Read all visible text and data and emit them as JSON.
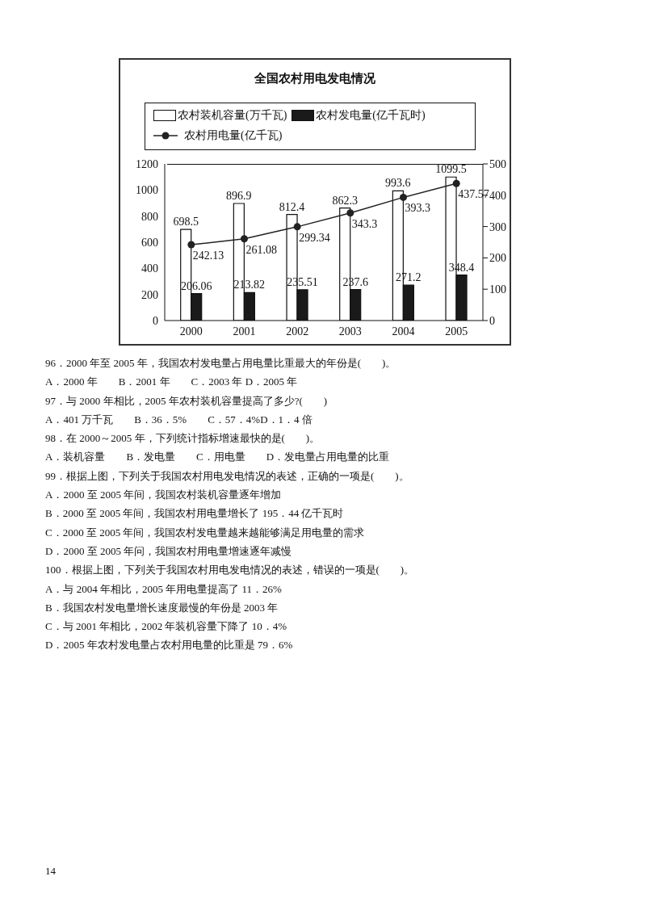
{
  "chart_data": {
    "type": "bar",
    "title": "全国农村用电发电情况",
    "categories": [
      "2000",
      "2001",
      "2002",
      "2003",
      "2004",
      "2005"
    ],
    "series": [
      {
        "name": "农村装机容量(万千瓦)",
        "color": "#ffffff",
        "values": [
          698.5,
          896.9,
          812.4,
          862.3,
          993.6,
          1099.5
        ]
      },
      {
        "name": "农村发电量(亿千瓦时)",
        "color": "#1a1a1a",
        "values": [
          206.06,
          213.82,
          235.51,
          237.6,
          271.2,
          348.4
        ]
      },
      {
        "name": "农村用电量(亿千瓦)",
        "type": "line",
        "axis": "y2",
        "color": "#222222",
        "values": [
          242.13,
          261.08,
          299.34,
          343.3,
          393.3,
          437.57
        ]
      }
    ],
    "ylim": [
      0,
      1200
    ],
    "yticks": [
      0,
      200,
      400,
      600,
      800,
      1000,
      1200
    ],
    "y2lim": [
      0,
      500
    ],
    "y2ticks": [
      0,
      100,
      200,
      300,
      400,
      500
    ],
    "grid": false,
    "legend": "top",
    "marker": "circle",
    "line_style": "solid",
    "data_labels": true,
    "annotations": [
      "96．2000 年至 2005 年，我国农村发电量占用电量比重最大的年份是(　　)。",
      "A．2000 年　　B．2001 年　　C．2003 年 D．2005 年",
      "97．与 2000 年相比，2005 年农村装机容量提高了多少?(　　)",
      "A．401 万千瓦　　B．36．5%　　C．57．4%D．1．4 倍",
      "98．在 2000～2005 年，下列统计指标增速最快的是(　　)。",
      "A．装机容量　　B．发电量　　C．用电量　　D．发电量占用电量的比重",
      "99．根据上图，下列关于我国农村用电发电情况的表述，正确的一项是(　　)。",
      "A．2000 至 2005 年间，我国农村装机容量逐年增加",
      "B．2000 至 2005 年间，我国农村用电量增长了 195．44 亿千瓦时",
      "C．2000 至 2005 年间，我国农村发电量越来越能够满足用电量的需求",
      "D．2000 至 2005 年问，我国农村用电量增速逐年减慢",
      "100．根据上图，下列关于我国农村用电发电情况的表述，错误的一项是(　　)。",
      "A．与 2004 年相比，2005 年用电量提高了 11．26%",
      "B．我国农村发电量增长速度最慢的年份是 2003 年",
      "C．与 2001 年相比，2002 年装机容量下降了 10．4%",
      "D．2005 年农村发电量占农村用电量的比重是 79．6%",
      "14"
    ]
  }
}
